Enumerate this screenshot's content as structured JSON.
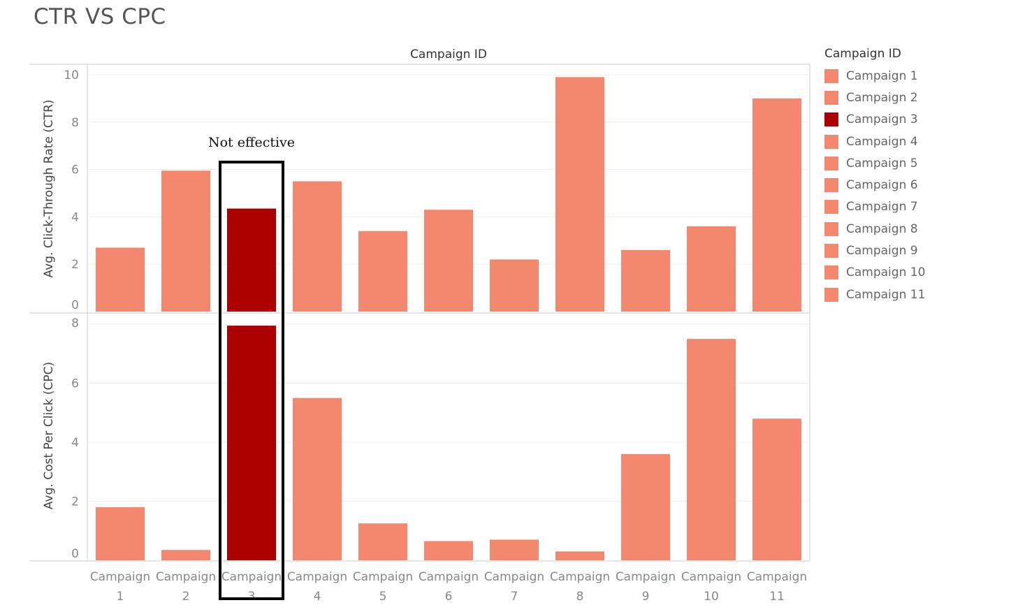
{
  "page_title": "CTR VS CPC",
  "colors": {
    "default_bar": "#f4886e",
    "highlight_bar": "#aa0000",
    "grid": "#eeeeee",
    "axis": "#cccccc",
    "annotation_box": "#000000"
  },
  "chart_data": {
    "type": "bar",
    "column_header": "Campaign ID",
    "categories": [
      "Campaign 1",
      "Campaign 2",
      "Campaign 3",
      "Campaign 4",
      "Campaign 5",
      "Campaign 6",
      "Campaign 7",
      "Campaign 8",
      "Campaign 9",
      "Campaign 10",
      "Campaign 11"
    ],
    "category_label_lines": [
      [
        "Campaign",
        "1"
      ],
      [
        "Campaign",
        "2"
      ],
      [
        "Campaign",
        "3"
      ],
      [
        "Campaign",
        "4"
      ],
      [
        "Campaign",
        "5"
      ],
      [
        "Campaign",
        "6"
      ],
      [
        "Campaign",
        "7"
      ],
      [
        "Campaign",
        "8"
      ],
      [
        "Campaign",
        "9"
      ],
      [
        "Campaign",
        "10"
      ],
      [
        "Campaign",
        "11"
      ]
    ],
    "highlight": "Campaign 3",
    "panels": [
      {
        "ylabel": "Avg. Click-Through Rate (CTR)",
        "ylim": [
          0,
          10
        ],
        "yticks": [
          0,
          2,
          4,
          6,
          8,
          10
        ],
        "values": [
          2.7,
          5.95,
          4.35,
          5.5,
          3.4,
          4.3,
          2.2,
          9.9,
          2.6,
          3.6,
          9.0
        ]
      },
      {
        "ylabel": "Avg. Cost Per Click (CPC)",
        "ylim": [
          0,
          8
        ],
        "yticks": [
          0,
          2,
          4,
          6,
          8
        ],
        "values": [
          1.8,
          0.35,
          7.95,
          5.5,
          1.25,
          0.65,
          0.7,
          0.3,
          3.6,
          7.5,
          4.8
        ]
      }
    ],
    "annotation": {
      "text": "Not effective",
      "target": "Campaign 3"
    },
    "legend": {
      "title": "Campaign ID",
      "position": "right",
      "items": [
        "Campaign 1",
        "Campaign 2",
        "Campaign 3",
        "Campaign 4",
        "Campaign 5",
        "Campaign 6",
        "Campaign 7",
        "Campaign 8",
        "Campaign 9",
        "Campaign 10",
        "Campaign 11"
      ]
    },
    "grid": true
  }
}
